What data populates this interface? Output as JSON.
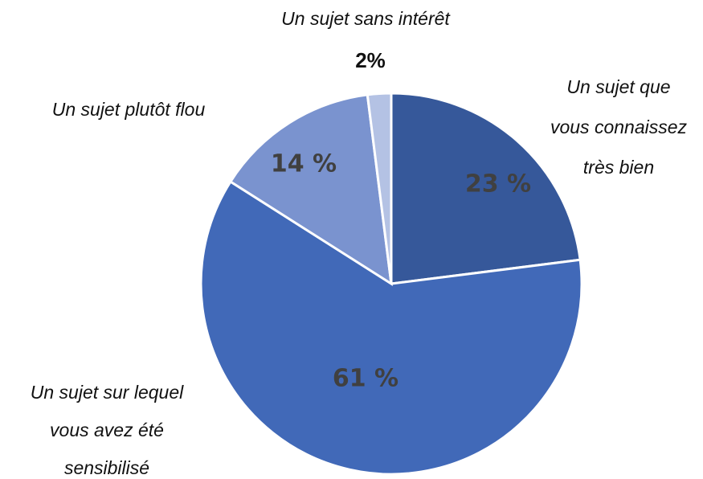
{
  "chart_data": {
    "type": "pie",
    "categories": [
      [
        "Un sujet que",
        "vous connaissez",
        "très bien"
      ],
      [
        "Un sujet sur lequel",
        "vous avez été",
        "sensibilisé"
      ],
      [
        "Un sujet plutôt flou"
      ],
      [
        "Un sujet sans intérêt"
      ]
    ],
    "values": [
      23,
      61,
      14,
      2
    ],
    "value_labels": [
      "23 %",
      "61 %",
      "14 %",
      "2%"
    ],
    "colors": [
      "#36589a",
      "#4169b8",
      "#7a93cf",
      "#b4c2e4"
    ]
  }
}
